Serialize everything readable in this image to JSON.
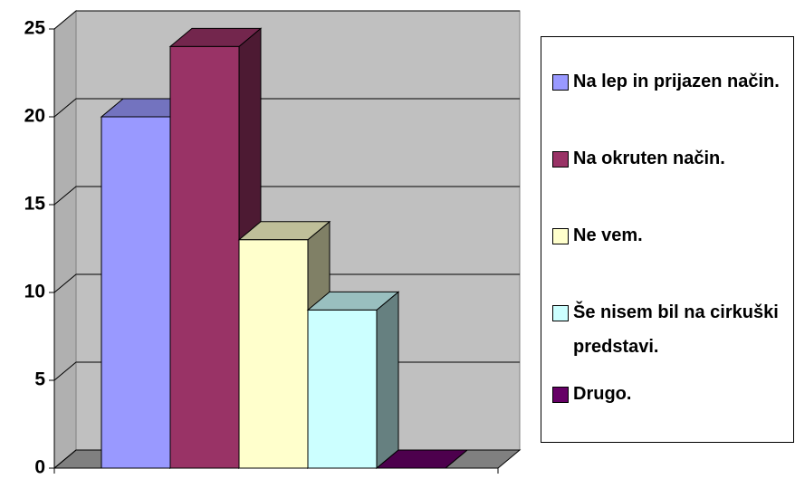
{
  "chart_data": {
    "type": "bar3d",
    "categories": [
      null
    ],
    "series": [
      {
        "name": "Na lep in prijazen način.",
        "color": "#9999ff",
        "values": [
          20
        ]
      },
      {
        "name": "Na okruten način.",
        "color": "#993366",
        "values": [
          24
        ]
      },
      {
        "name": "Ne vem.",
        "color": "#ffffcc",
        "values": [
          13
        ]
      },
      {
        "name": "Še nisem bil na cirkuški predstavi.",
        "color": "#ccffff",
        "values": [
          9
        ]
      },
      {
        "name": "Drugo.",
        "color": "#660066",
        "values": [
          0
        ]
      }
    ],
    "ylim": [
      0,
      25
    ],
    "yticks": [
      0,
      5,
      10,
      15,
      20,
      25
    ],
    "grid": true,
    "legend": "right"
  }
}
